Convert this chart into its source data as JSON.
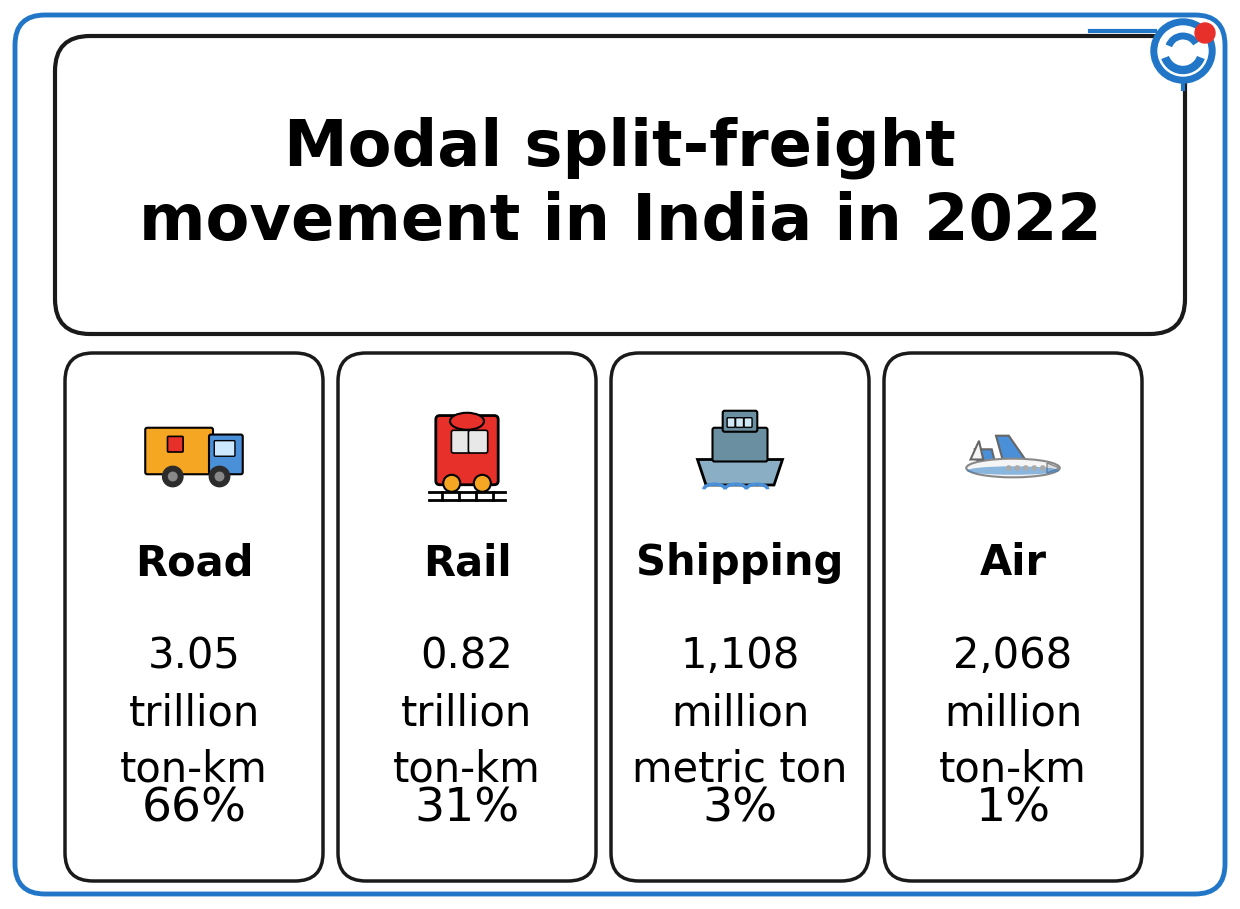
{
  "title": "Modal split-freight\nmovement in India in 2022",
  "bg_color": "#ffffff",
  "border_color": "#2176c7",
  "title_box_border": "#1a1a1a",
  "card_border": "#1a1a1a",
  "modes": [
    "Road",
    "Rail",
    "Shipping",
    "Air"
  ],
  "values": [
    "3.05\ntrillion\nton-km",
    "0.82\ntrillion\nton-km",
    "1,108\nmillion\nmetric ton",
    "2,068\nmillion\nton-km"
  ],
  "percentages": [
    "66%",
    "31%",
    "3%",
    "1%"
  ],
  "logo_blue": "#2176c7",
  "logo_red": "#e8302a",
  "title_fontsize": 46,
  "mode_fontsize": 30,
  "value_fontsize": 30,
  "pct_fontsize": 34,
  "truck_body": "#F5A623",
  "truck_cab": "#4A90D9",
  "truck_wheel": "#2c2c2c",
  "truck_cargo": "#e8302a",
  "train_body": "#e8302a",
  "train_window": "#f5f5f5",
  "train_wheel": "#f5a623",
  "ship_hull": "#8aafc4",
  "ship_deck": "#6a8fa0",
  "ship_window": "#f5f5f5",
  "ship_wave": "#4A90D9",
  "plane_body": "#f5f5f5",
  "plane_wing": "#4A90D9",
  "plane_stripe": "#2176c7"
}
